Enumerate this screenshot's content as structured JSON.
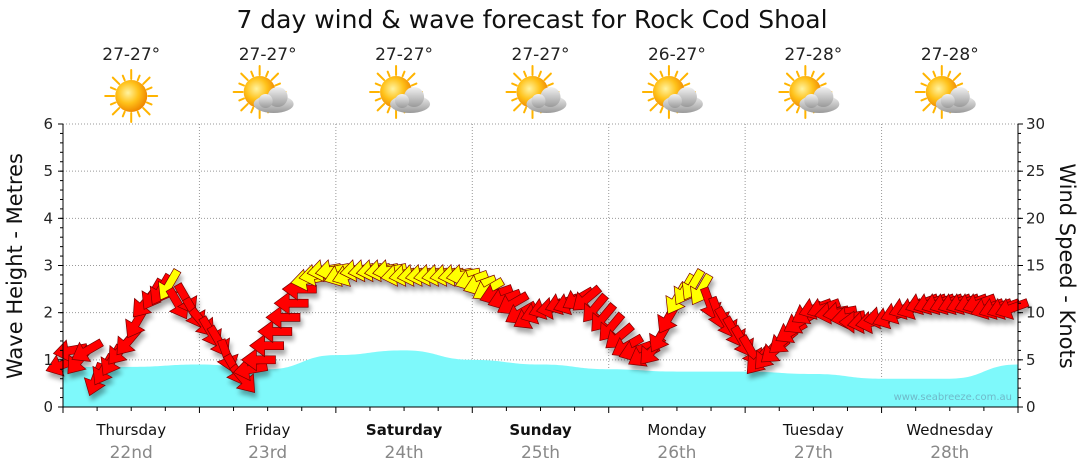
{
  "chart_data": {
    "type": "area",
    "title": "7 day wind & wave forecast for Rock Cod Shoal",
    "watermark": "www.seabreeze.com.au",
    "ylabel_left": "Wave Height - Metres",
    "ylabel_right": "Wind Speed - Knots",
    "ylim_left": [
      0,
      6
    ],
    "yticks_left": [
      "0",
      "1",
      "2",
      "3",
      "4",
      "5",
      "6"
    ],
    "ylim_right": [
      0,
      30
    ],
    "yticks_right": [
      "0",
      "5",
      "10",
      "15",
      "20",
      "25",
      "30"
    ],
    "days": [
      {
        "name": "Thursday",
        "date": "22nd",
        "bold": false,
        "temp": "27-27°",
        "icon": "sun-icon"
      },
      {
        "name": "Friday",
        "date": "23rd",
        "bold": false,
        "temp": "27-27°",
        "icon": "partly-cloudy-icon"
      },
      {
        "name": "Saturday",
        "date": "24th",
        "bold": true,
        "temp": "27-27°",
        "icon": "partly-cloudy-icon"
      },
      {
        "name": "Sunday",
        "date": "25th",
        "bold": true,
        "temp": "27-27°",
        "icon": "partly-cloudy-icon"
      },
      {
        "name": "Monday",
        "date": "26th",
        "bold": false,
        "temp": "26-27°",
        "icon": "partly-cloudy-icon"
      },
      {
        "name": "Tuesday",
        "date": "27th",
        "bold": false,
        "temp": "27-28°",
        "icon": "partly-cloudy-icon"
      },
      {
        "name": "Wednesday",
        "date": "28th",
        "bold": false,
        "temp": "27-28°",
        "icon": "partly-cloudy-icon"
      }
    ],
    "wave_height_m": {
      "x_days": [
        0,
        0.5,
        1,
        1.5,
        2,
        2.5,
        3,
        3.5,
        4,
        4.5,
        5,
        5.5,
        6,
        6.5,
        7
      ],
      "values": [
        0.85,
        0.85,
        0.9,
        0.8,
        1.1,
        1.2,
        1.0,
        0.9,
        0.8,
        0.75,
        0.75,
        0.7,
        0.6,
        0.6,
        0.9
      ]
    },
    "wind": [
      {
        "t": 0.0,
        "kn": 4.5,
        "dir": 70,
        "c": "red"
      },
      {
        "t": 0.06,
        "kn": 6,
        "dir": 80,
        "c": "red"
      },
      {
        "t": 0.12,
        "kn": 5,
        "dir": 40,
        "c": "red"
      },
      {
        "t": 0.18,
        "kn": 6,
        "dir": 60,
        "c": "red"
      },
      {
        "t": 0.24,
        "kn": 3,
        "dir": 20,
        "c": "red"
      },
      {
        "t": 0.3,
        "kn": 4,
        "dir": 30,
        "c": "red"
      },
      {
        "t": 0.36,
        "kn": 5,
        "dir": 30,
        "c": "red"
      },
      {
        "t": 0.42,
        "kn": 6,
        "dir": 40,
        "c": "red"
      },
      {
        "t": 0.48,
        "kn": 7,
        "dir": 40,
        "c": "red"
      },
      {
        "t": 0.54,
        "kn": 9,
        "dir": 30,
        "c": "red"
      },
      {
        "t": 0.6,
        "kn": 11,
        "dir": 40,
        "c": "red"
      },
      {
        "t": 0.66,
        "kn": 12,
        "dir": 30,
        "c": "red"
      },
      {
        "t": 0.72,
        "kn": 12.5,
        "dir": 30,
        "c": "red"
      },
      {
        "t": 0.78,
        "kn": 13,
        "dir": 30,
        "c": "yellow"
      },
      {
        "t": 0.84,
        "kn": 11,
        "dir": 330,
        "c": "red"
      },
      {
        "t": 0.9,
        "kn": 11.5,
        "dir": 330,
        "c": "red"
      },
      {
        "t": 0.96,
        "kn": 10,
        "dir": 330,
        "c": "red"
      },
      {
        "t": 1.02,
        "kn": 9,
        "dir": 320,
        "c": "red"
      },
      {
        "t": 1.08,
        "kn": 8,
        "dir": 330,
        "c": "red"
      },
      {
        "t": 1.14,
        "kn": 7,
        "dir": 330,
        "c": "red"
      },
      {
        "t": 1.2,
        "kn": 5.5,
        "dir": 340,
        "c": "red"
      },
      {
        "t": 1.26,
        "kn": 4,
        "dir": 330,
        "c": "red"
      },
      {
        "t": 1.32,
        "kn": 3,
        "dir": 320,
        "c": "red"
      },
      {
        "t": 1.38,
        "kn": 4,
        "dir": 80,
        "c": "red"
      },
      {
        "t": 1.44,
        "kn": 5,
        "dir": 90,
        "c": "red"
      },
      {
        "t": 1.5,
        "kn": 6.5,
        "dir": 90,
        "c": "red"
      },
      {
        "t": 1.56,
        "kn": 8,
        "dir": 90,
        "c": "red"
      },
      {
        "t": 1.62,
        "kn": 9.5,
        "dir": 90,
        "c": "red"
      },
      {
        "t": 1.68,
        "kn": 11,
        "dir": 90,
        "c": "red"
      },
      {
        "t": 1.74,
        "kn": 12.5,
        "dir": 90,
        "c": "red"
      },
      {
        "t": 1.8,
        "kn": 13.5,
        "dir": 80,
        "c": "yellow"
      },
      {
        "t": 1.86,
        "kn": 14,
        "dir": 80,
        "c": "yellow"
      },
      {
        "t": 1.92,
        "kn": 14.5,
        "dir": 80,
        "c": "yellow"
      },
      {
        "t": 1.98,
        "kn": 14.5,
        "dir": 80,
        "c": "yellow"
      },
      {
        "t": 2.04,
        "kn": 14,
        "dir": 70,
        "c": "yellow"
      },
      {
        "t": 2.1,
        "kn": 14,
        "dir": 70,
        "c": "yellow"
      },
      {
        "t": 2.16,
        "kn": 14.5,
        "dir": 80,
        "c": "yellow"
      },
      {
        "t": 2.22,
        "kn": 14.5,
        "dir": 80,
        "c": "yellow"
      },
      {
        "t": 2.28,
        "kn": 14.5,
        "dir": 80,
        "c": "yellow"
      },
      {
        "t": 2.34,
        "kn": 14.5,
        "dir": 80,
        "c": "yellow"
      },
      {
        "t": 2.4,
        "kn": 14.5,
        "dir": 80,
        "c": "yellow"
      },
      {
        "t": 2.46,
        "kn": 14,
        "dir": 80,
        "c": "yellow"
      },
      {
        "t": 2.52,
        "kn": 14,
        "dir": 80,
        "c": "yellow"
      },
      {
        "t": 2.58,
        "kn": 14,
        "dir": 80,
        "c": "yellow"
      },
      {
        "t": 2.64,
        "kn": 14,
        "dir": 80,
        "c": "yellow"
      },
      {
        "t": 2.7,
        "kn": 14,
        "dir": 80,
        "c": "yellow"
      },
      {
        "t": 2.76,
        "kn": 14,
        "dir": 80,
        "c": "yellow"
      },
      {
        "t": 2.82,
        "kn": 14,
        "dir": 80,
        "c": "yellow"
      },
      {
        "t": 2.88,
        "kn": 14,
        "dir": 80,
        "c": "yellow"
      },
      {
        "t": 2.94,
        "kn": 14,
        "dir": 80,
        "c": "yellow"
      },
      {
        "t": 3.0,
        "kn": 13.5,
        "dir": 70,
        "c": "yellow"
      },
      {
        "t": 3.06,
        "kn": 13,
        "dir": 70,
        "c": "yellow"
      },
      {
        "t": 3.12,
        "kn": 12.5,
        "dir": 60,
        "c": "yellow"
      },
      {
        "t": 3.18,
        "kn": 12,
        "dir": 70,
        "c": "red"
      },
      {
        "t": 3.24,
        "kn": 11.5,
        "dir": 70,
        "c": "red"
      },
      {
        "t": 3.3,
        "kn": 11,
        "dir": 60,
        "c": "red"
      },
      {
        "t": 3.36,
        "kn": 10,
        "dir": 60,
        "c": "red"
      },
      {
        "t": 3.42,
        "kn": 9.5,
        "dir": 60,
        "c": "red"
      },
      {
        "t": 3.48,
        "kn": 10,
        "dir": 70,
        "c": "red"
      },
      {
        "t": 3.54,
        "kn": 10.5,
        "dir": 70,
        "c": "red"
      },
      {
        "t": 3.6,
        "kn": 10.5,
        "dir": 80,
        "c": "red"
      },
      {
        "t": 3.66,
        "kn": 11,
        "dir": 70,
        "c": "red"
      },
      {
        "t": 3.72,
        "kn": 11,
        "dir": 70,
        "c": "red"
      },
      {
        "t": 3.78,
        "kn": 11.5,
        "dir": 60,
        "c": "red"
      },
      {
        "t": 3.84,
        "kn": 11.5,
        "dir": 50,
        "c": "red"
      },
      {
        "t": 3.9,
        "kn": 10.5,
        "dir": 40,
        "c": "red"
      },
      {
        "t": 3.96,
        "kn": 9.5,
        "dir": 40,
        "c": "red"
      },
      {
        "t": 4.02,
        "kn": 8.5,
        "dir": 40,
        "c": "red"
      },
      {
        "t": 4.08,
        "kn": 7.5,
        "dir": 50,
        "c": "red"
      },
      {
        "t": 4.14,
        "kn": 6.5,
        "dir": 60,
        "c": "red"
      },
      {
        "t": 4.2,
        "kn": 6,
        "dir": 70,
        "c": "red"
      },
      {
        "t": 4.26,
        "kn": 5.5,
        "dir": 60,
        "c": "red"
      },
      {
        "t": 4.32,
        "kn": 6,
        "dir": 40,
        "c": "red"
      },
      {
        "t": 4.38,
        "kn": 7.5,
        "dir": 30,
        "c": "red"
      },
      {
        "t": 4.44,
        "kn": 9.5,
        "dir": 30,
        "c": "red"
      },
      {
        "t": 4.5,
        "kn": 11.5,
        "dir": 30,
        "c": "yellow"
      },
      {
        "t": 4.56,
        "kn": 12.5,
        "dir": 30,
        "c": "yellow"
      },
      {
        "t": 4.62,
        "kn": 13,
        "dir": 30,
        "c": "yellow"
      },
      {
        "t": 4.68,
        "kn": 12.5,
        "dir": 30,
        "c": "yellow"
      },
      {
        "t": 4.74,
        "kn": 11,
        "dir": 340,
        "c": "red"
      },
      {
        "t": 4.8,
        "kn": 10,
        "dir": 340,
        "c": "red"
      },
      {
        "t": 4.86,
        "kn": 9,
        "dir": 330,
        "c": "red"
      },
      {
        "t": 4.92,
        "kn": 8,
        "dir": 330,
        "c": "red"
      },
      {
        "t": 4.98,
        "kn": 7,
        "dir": 330,
        "c": "red"
      },
      {
        "t": 5.04,
        "kn": 6,
        "dir": 330,
        "c": "red"
      },
      {
        "t": 5.1,
        "kn": 5,
        "dir": 40,
        "c": "red"
      },
      {
        "t": 5.16,
        "kn": 5.5,
        "dir": 40,
        "c": "red"
      },
      {
        "t": 5.22,
        "kn": 6,
        "dir": 50,
        "c": "red"
      },
      {
        "t": 5.28,
        "kn": 7,
        "dir": 50,
        "c": "red"
      },
      {
        "t": 5.34,
        "kn": 8,
        "dir": 60,
        "c": "red"
      },
      {
        "t": 5.4,
        "kn": 9,
        "dir": 60,
        "c": "red"
      },
      {
        "t": 5.46,
        "kn": 10,
        "dir": 60,
        "c": "red"
      },
      {
        "t": 5.52,
        "kn": 10.5,
        "dir": 70,
        "c": "red"
      },
      {
        "t": 5.58,
        "kn": 10.5,
        "dir": 70,
        "c": "red"
      },
      {
        "t": 5.64,
        "kn": 10,
        "dir": 80,
        "c": "red"
      },
      {
        "t": 5.7,
        "kn": 10,
        "dir": 80,
        "c": "red"
      },
      {
        "t": 5.76,
        "kn": 9.5,
        "dir": 80,
        "c": "red"
      },
      {
        "t": 5.82,
        "kn": 9,
        "dir": 90,
        "c": "red"
      },
      {
        "t": 5.88,
        "kn": 9,
        "dir": 80,
        "c": "red"
      },
      {
        "t": 5.94,
        "kn": 9,
        "dir": 80,
        "c": "red"
      },
      {
        "t": 6.0,
        "kn": 9.5,
        "dir": 80,
        "c": "red"
      },
      {
        "t": 6.06,
        "kn": 9.5,
        "dir": 70,
        "c": "red"
      },
      {
        "t": 6.12,
        "kn": 10,
        "dir": 70,
        "c": "red"
      },
      {
        "t": 6.18,
        "kn": 10.5,
        "dir": 70,
        "c": "red"
      },
      {
        "t": 6.24,
        "kn": 10.5,
        "dir": 70,
        "c": "red"
      },
      {
        "t": 6.3,
        "kn": 11,
        "dir": 70,
        "c": "red"
      },
      {
        "t": 6.36,
        "kn": 11,
        "dir": 70,
        "c": "red"
      },
      {
        "t": 6.42,
        "kn": 11,
        "dir": 70,
        "c": "red"
      },
      {
        "t": 6.48,
        "kn": 11,
        "dir": 70,
        "c": "red"
      },
      {
        "t": 6.54,
        "kn": 11,
        "dir": 70,
        "c": "red"
      },
      {
        "t": 6.6,
        "kn": 11,
        "dir": 70,
        "c": "red"
      },
      {
        "t": 6.66,
        "kn": 11,
        "dir": 70,
        "c": "red"
      },
      {
        "t": 6.72,
        "kn": 11,
        "dir": 70,
        "c": "red"
      },
      {
        "t": 6.78,
        "kn": 10.5,
        "dir": 70,
        "c": "red"
      },
      {
        "t": 6.84,
        "kn": 10.5,
        "dir": 70,
        "c": "red"
      },
      {
        "t": 6.9,
        "kn": 10.5,
        "dir": 70,
        "c": "red"
      },
      {
        "t": 6.96,
        "kn": 10.5,
        "dir": 70,
        "c": "red"
      }
    ],
    "colors": {
      "wave_fill": "#7ef9fb",
      "wind_strong": "#ff0000",
      "wind_moderate": "#ffff00",
      "arrow_stroke": "#7a0000",
      "grid": "#999999",
      "sun": "#ffb400",
      "cloud": "#b9b9b9"
    },
    "grid": true
  }
}
